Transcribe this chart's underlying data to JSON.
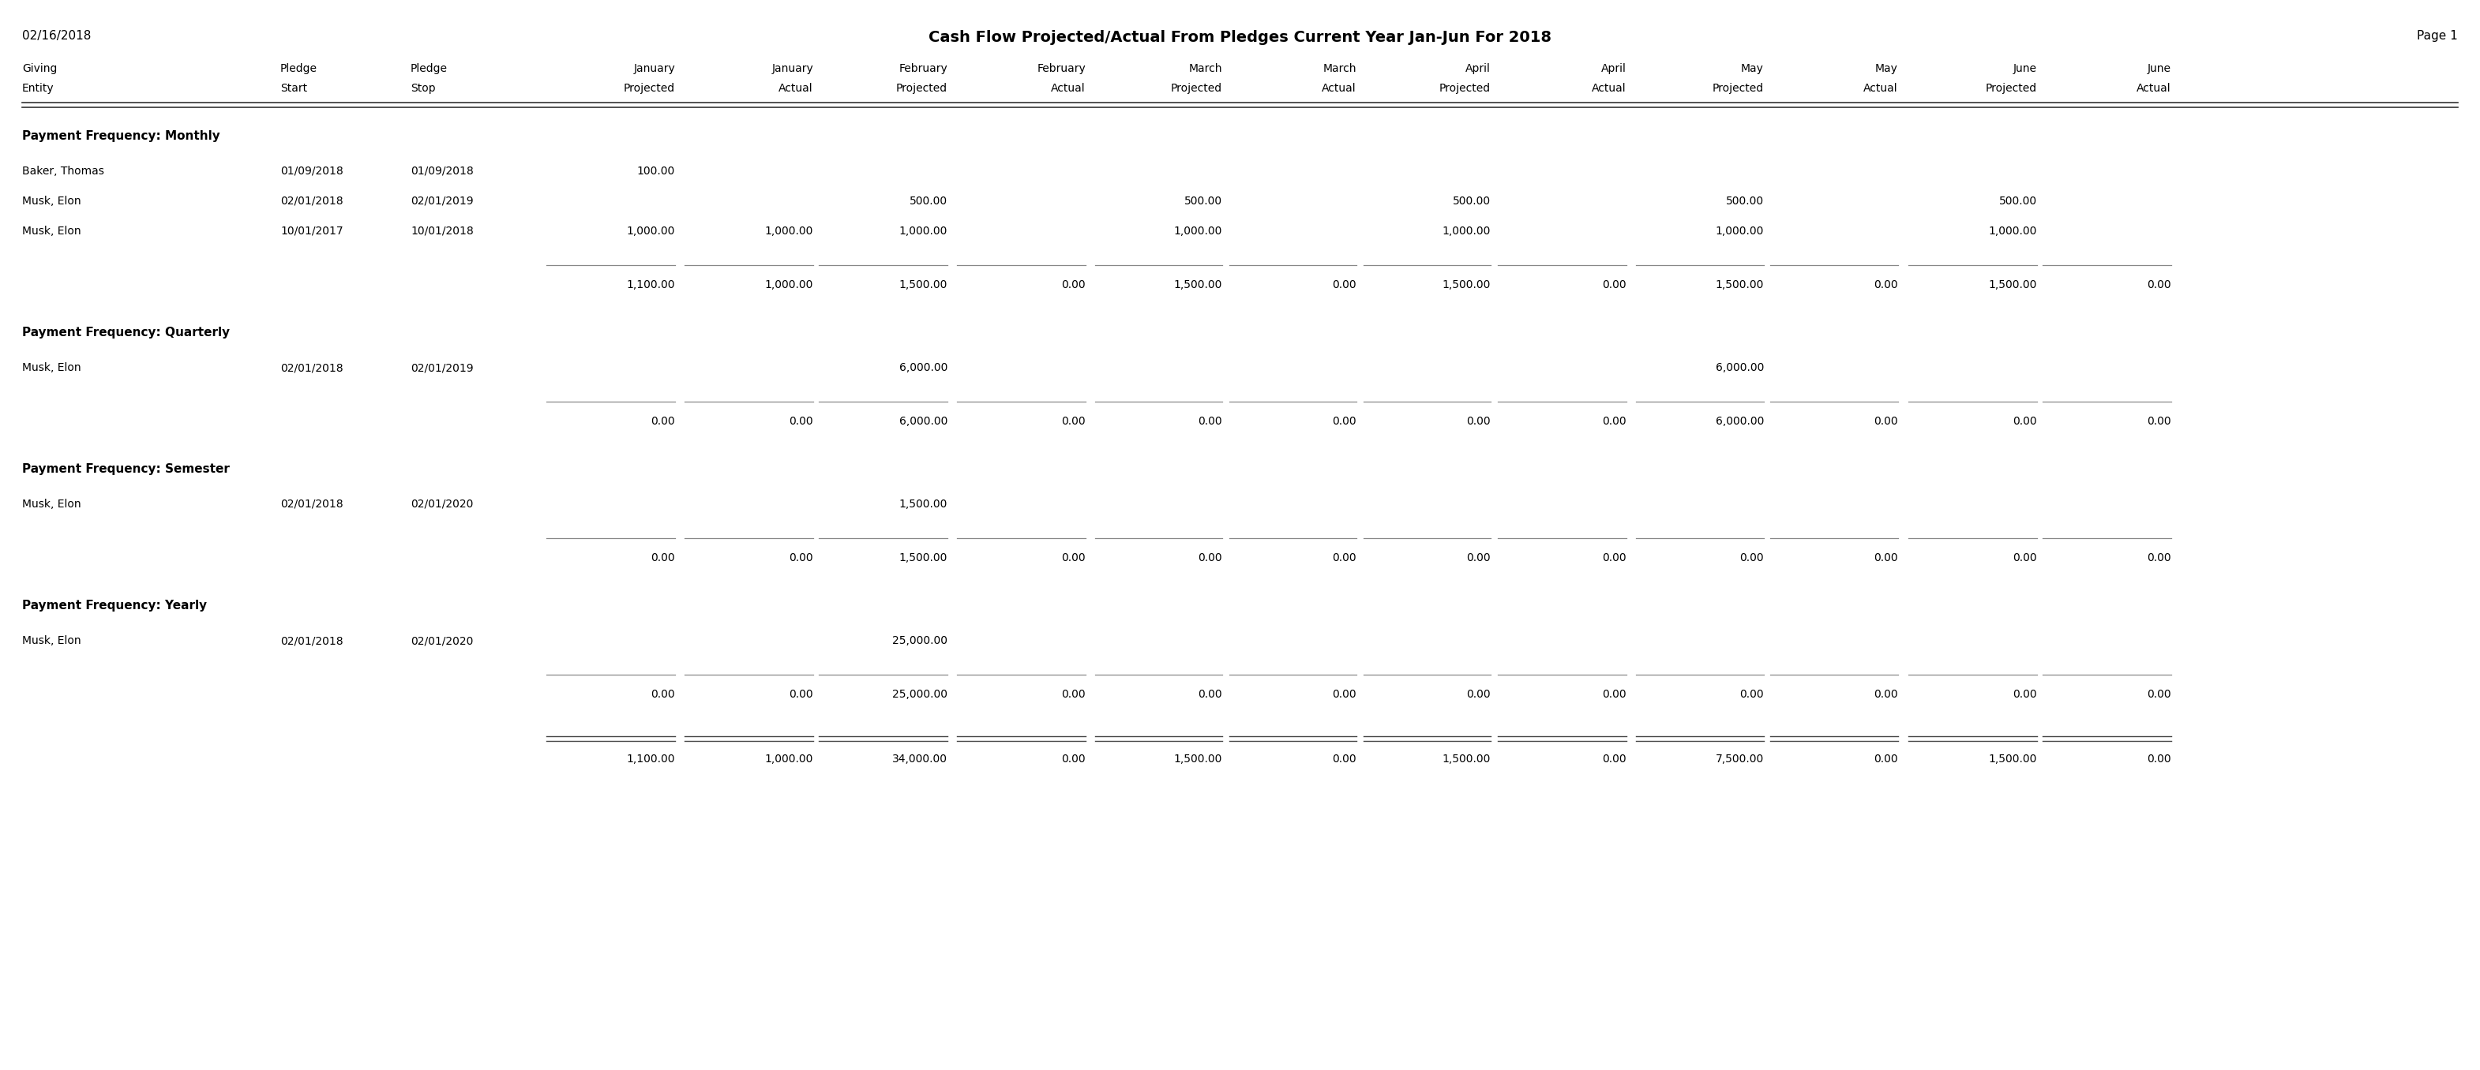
{
  "title": "Cash Flow Projected/Actual From Pledges Current Year Jan-Jun For 2018",
  "date_left": "02/16/2018",
  "page_right": "Page 1",
  "col_headers_line1": [
    "Giving",
    "Pledge",
    "Pledge",
    "January",
    "January",
    "February",
    "February",
    "March",
    "March",
    "April",
    "April",
    "May",
    "May",
    "June",
    "June"
  ],
  "col_headers_line2": [
    "Entity",
    "Start",
    "Stop",
    "Projected",
    "Actual",
    "Projected",
    "Actual",
    "Projected",
    "Actual",
    "Projected",
    "Actual",
    "Projected",
    "Actual",
    "Projected",
    "Actual"
  ],
  "sections": [
    {
      "label": "Payment Frequency: Monthly",
      "rows": [
        {
          "giving_entity": "Baker, Thomas",
          "pledge_start": "01/09/2018",
          "pledge_stop": "01/09/2018",
          "jan_proj": "100.00",
          "jan_act": "",
          "feb_proj": "",
          "feb_act": "",
          "mar_proj": "",
          "mar_act": "",
          "apr_proj": "",
          "apr_act": "",
          "may_proj": "",
          "may_act": "",
          "jun_proj": "",
          "jun_act": ""
        },
        {
          "giving_entity": "Musk, Elon",
          "pledge_start": "02/01/2018",
          "pledge_stop": "02/01/2019",
          "jan_proj": "",
          "jan_act": "",
          "feb_proj": "500.00",
          "feb_act": "",
          "mar_proj": "500.00",
          "mar_act": "",
          "apr_proj": "500.00",
          "apr_act": "",
          "may_proj": "500.00",
          "may_act": "",
          "jun_proj": "500.00",
          "jun_act": ""
        },
        {
          "giving_entity": "Musk, Elon",
          "pledge_start": "10/01/2017",
          "pledge_stop": "10/01/2018",
          "jan_proj": "1,000.00",
          "jan_act": "1,000.00",
          "feb_proj": "1,000.00",
          "feb_act": "",
          "mar_proj": "1,000.00",
          "mar_act": "",
          "apr_proj": "1,000.00",
          "apr_act": "",
          "may_proj": "1,000.00",
          "may_act": "",
          "jun_proj": "1,000.00",
          "jun_act": ""
        }
      ],
      "totals": [
        "1,100.00",
        "1,000.00",
        "1,500.00",
        "0.00",
        "1,500.00",
        "0.00",
        "1,500.00",
        "0.00",
        "1,500.00",
        "0.00",
        "1,500.00",
        "0.00"
      ]
    },
    {
      "label": "Payment Frequency: Quarterly",
      "rows": [
        {
          "giving_entity": "Musk, Elon",
          "pledge_start": "02/01/2018",
          "pledge_stop": "02/01/2019",
          "jan_proj": "",
          "jan_act": "",
          "feb_proj": "6,000.00",
          "feb_act": "",
          "mar_proj": "",
          "mar_act": "",
          "apr_proj": "",
          "apr_act": "",
          "may_proj": "6,000.00",
          "may_act": "",
          "jun_proj": "",
          "jun_act": ""
        }
      ],
      "totals": [
        "0.00",
        "0.00",
        "6,000.00",
        "0.00",
        "0.00",
        "0.00",
        "0.00",
        "0.00",
        "6,000.00",
        "0.00",
        "0.00",
        "0.00"
      ]
    },
    {
      "label": "Payment Frequency: Semester",
      "rows": [
        {
          "giving_entity": "Musk, Elon",
          "pledge_start": "02/01/2018",
          "pledge_stop": "02/01/2020",
          "jan_proj": "",
          "jan_act": "",
          "feb_proj": "1,500.00",
          "feb_act": "",
          "mar_proj": "",
          "mar_act": "",
          "apr_proj": "",
          "apr_act": "",
          "may_proj": "",
          "may_act": "",
          "jun_proj": "",
          "jun_act": ""
        }
      ],
      "totals": [
        "0.00",
        "0.00",
        "1,500.00",
        "0.00",
        "0.00",
        "0.00",
        "0.00",
        "0.00",
        "0.00",
        "0.00",
        "0.00",
        "0.00"
      ]
    },
    {
      "label": "Payment Frequency: Yearly",
      "rows": [
        {
          "giving_entity": "Musk, Elon",
          "pledge_start": "02/01/2018",
          "pledge_stop": "02/01/2020",
          "jan_proj": "",
          "jan_act": "",
          "feb_proj": "25,000.00",
          "feb_act": "",
          "mar_proj": "",
          "mar_act": "",
          "apr_proj": "",
          "apr_act": "",
          "may_proj": "",
          "may_act": "",
          "jun_proj": "",
          "jun_act": ""
        }
      ],
      "totals": [
        "0.00",
        "0.00",
        "25,000.00",
        "0.00",
        "0.00",
        "0.00",
        "0.00",
        "0.00",
        "0.00",
        "0.00",
        "0.00",
        "0.00"
      ]
    }
  ],
  "grand_totals": [
    "1,100.00",
    "1,000.00",
    "34,000.00",
    "0.00",
    "1,500.00",
    "0.00",
    "1,500.00",
    "0.00",
    "7,500.00",
    "0.00",
    "1,500.00",
    "0.00"
  ],
  "bg_color": "#ffffff",
  "text_color": "#000000"
}
